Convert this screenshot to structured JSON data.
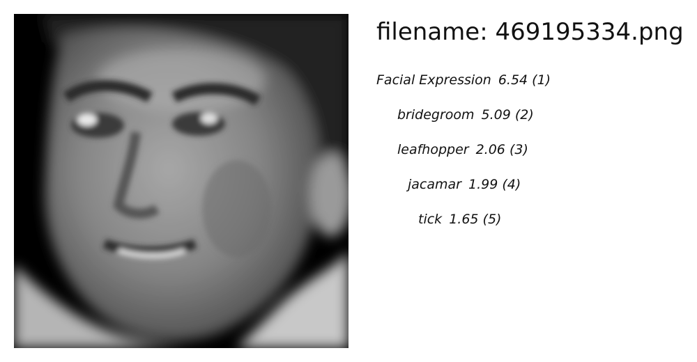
{
  "header": {
    "filename_label": "filename:",
    "filename": "469195334.png"
  },
  "predictions": [
    {
      "label": "Facial Expression",
      "score": "6.54",
      "rank": "(1)"
    },
    {
      "label": "bridegroom",
      "score": "5.09",
      "rank": "(2)"
    },
    {
      "label": "leafhopper",
      "score": "2.06",
      "rank": "(3)"
    },
    {
      "label": "jacamar",
      "score": "1.99",
      "rank": "(4)"
    },
    {
      "label": "tick",
      "score": "1.65",
      "rank": "(5)"
    }
  ],
  "image": {
    "icon": "grayscale-face-photo",
    "colors": {
      "background": "#000000",
      "skin": "#8a8a8a",
      "hair": "#1a1a1a"
    }
  }
}
